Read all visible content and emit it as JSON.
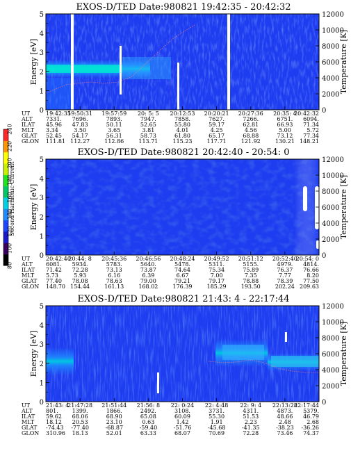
{
  "colorbar": {
    "label": "Second Harmonic Current",
    "ticks": [
      "80",
      "100",
      "120",
      "140",
      "160",
      "180",
      "200",
      "220",
      "240"
    ],
    "colors": [
      "#000000",
      "#3a0060",
      "#1a1ac8",
      "#1e46ff",
      "#1e8cff",
      "#00d2e6",
      "#00c864",
      "#1ee61e",
      "#c8f000",
      "#ffff00",
      "#ff9600",
      "#ff2828"
    ]
  },
  "common": {
    "ylabel_left": "Energy [eV]",
    "ylabel_right": "Temperature [K]",
    "energy_ticks": [
      "0",
      "1",
      "2",
      "3",
      "4",
      "5"
    ],
    "temp_ticks": [
      "0",
      "2000",
      "4000",
      "6000",
      "8000",
      "10000",
      "12000"
    ],
    "eph_labels": [
      "UT",
      "ALT",
      "ILAT",
      "MLT",
      "GLAT",
      "GLON"
    ]
  },
  "chart_data": [
    {
      "type": "heatmap",
      "title": "EXOS-D/TED   Date:980821  19:42:35 - 20:42:32",
      "xlabel": "",
      "ylabel": "Energy [eV]",
      "ylim": [
        0,
        5
      ],
      "y2lim": [
        0,
        12000
      ],
      "ut": [
        "19:42:35",
        "19:50:31",
        "19:57:59",
        "20: 5: 5",
        "20:12:53",
        "20:20:21",
        "20:27:36",
        "20:35: 4",
        "20:42:32"
      ],
      "alt": [
        "7331.",
        "7696.",
        "7893.",
        "7947.",
        "7858.",
        "7627.",
        "7266.",
        "6751.",
        "6094."
      ],
      "ilat": [
        "45.96",
        "47.83",
        "50.11",
        "52.65",
        "55.80",
        "59.17",
        "62.81",
        "66.93",
        "71.34"
      ],
      "mlt": [
        "3.34",
        "3.50",
        "3.65",
        "3.81",
        "4.01",
        "4.25",
        "4.56",
        "5.00",
        "5.72"
      ],
      "glat": [
        "52.45",
        "54.17",
        "56.31",
        "58.73",
        "61.80",
        "65.17",
        "68.88",
        "73.12",
        "77.34"
      ],
      "glon": [
        "111.81",
        "112.27",
        "112.86",
        "113.71",
        "115.23",
        "117.71",
        "121.92",
        "130.21",
        "148.21"
      ]
    },
    {
      "type": "heatmap",
      "title": "EXOS-D/TED   Date:980821  20:42:40 - 20:54: 0",
      "xlabel": "",
      "ylabel": "Energy [eV]",
      "ylim": [
        0,
        5
      ],
      "y2lim": [
        0,
        12000
      ],
      "ut": [
        "20:42:40",
        "20:44: 8",
        "20:45:36",
        "20:46:56",
        "20:48:24",
        "20:49:52",
        "20:51:12",
        "20:52:40",
        "20:54: 0"
      ],
      "alt": [
        "6081.",
        "5934.",
        "5783.",
        "5640.",
        "5478.",
        "5311.",
        "5155.",
        "4979.",
        "4814."
      ],
      "ilat": [
        "71.42",
        "72.28",
        "73.13",
        "73.87",
        "74.64",
        "75.34",
        "75.89",
        "76.37",
        "76.66"
      ],
      "mlt": [
        "5.73",
        "5.93",
        "6.16",
        "6.39",
        "6.67",
        "7.00",
        "7.35",
        "7.77",
        "8.20"
      ],
      "glat": [
        "77.40",
        "78.08",
        "78.63",
        "79.00",
        "79.21",
        "79.17",
        "78.88",
        "78.39",
        "77.50"
      ],
      "glon": [
        "148.70",
        "154.44",
        "161.13",
        "168.02",
        "176.39",
        "185.29",
        "193.50",
        "202.24",
        "209.63"
      ]
    },
    {
      "type": "heatmap",
      "title": "EXOS-D/TED   Date:980821  21:43: 4 - 22:17:44",
      "xlabel": "",
      "ylabel": "Energy [eV]",
      "ylim": [
        0,
        5
      ],
      "y2lim": [
        0,
        12000
      ],
      "ut": [
        "21:43: 4",
        "21:47:28",
        "21:51:44",
        "21:56: 8",
        "22: 0:24",
        "22: 4:48",
        "22: 9: 4",
        "22:13:28",
        "22:17:44"
      ],
      "alt": [
        "801.",
        "1399.",
        "1866.",
        "2492.",
        "3108.",
        "3731.",
        "4311.",
        "4873.",
        "5379."
      ],
      "ilat": [
        "59.62",
        "68.06",
        "68.90",
        "65.08",
        "60.09",
        "55.30",
        "51.53",
        "48.66",
        "46.79"
      ],
      "mlt": [
        "18.12",
        "20.53",
        "23.10",
        "0.63",
        "1.42",
        "1.91",
        "2.23",
        "2.48",
        "2.68"
      ],
      "glat": [
        "-74.43",
        "-77.40",
        "-68.87",
        "-59.40",
        "-51.76",
        "-45.68",
        "-41.35",
        "-38.23",
        "-36.26"
      ],
      "glon": [
        "310.96",
        "18.13",
        "52.01",
        "63.33",
        "68.07",
        "70.69",
        "72.28",
        "73.46",
        "74.37"
      ]
    }
  ]
}
